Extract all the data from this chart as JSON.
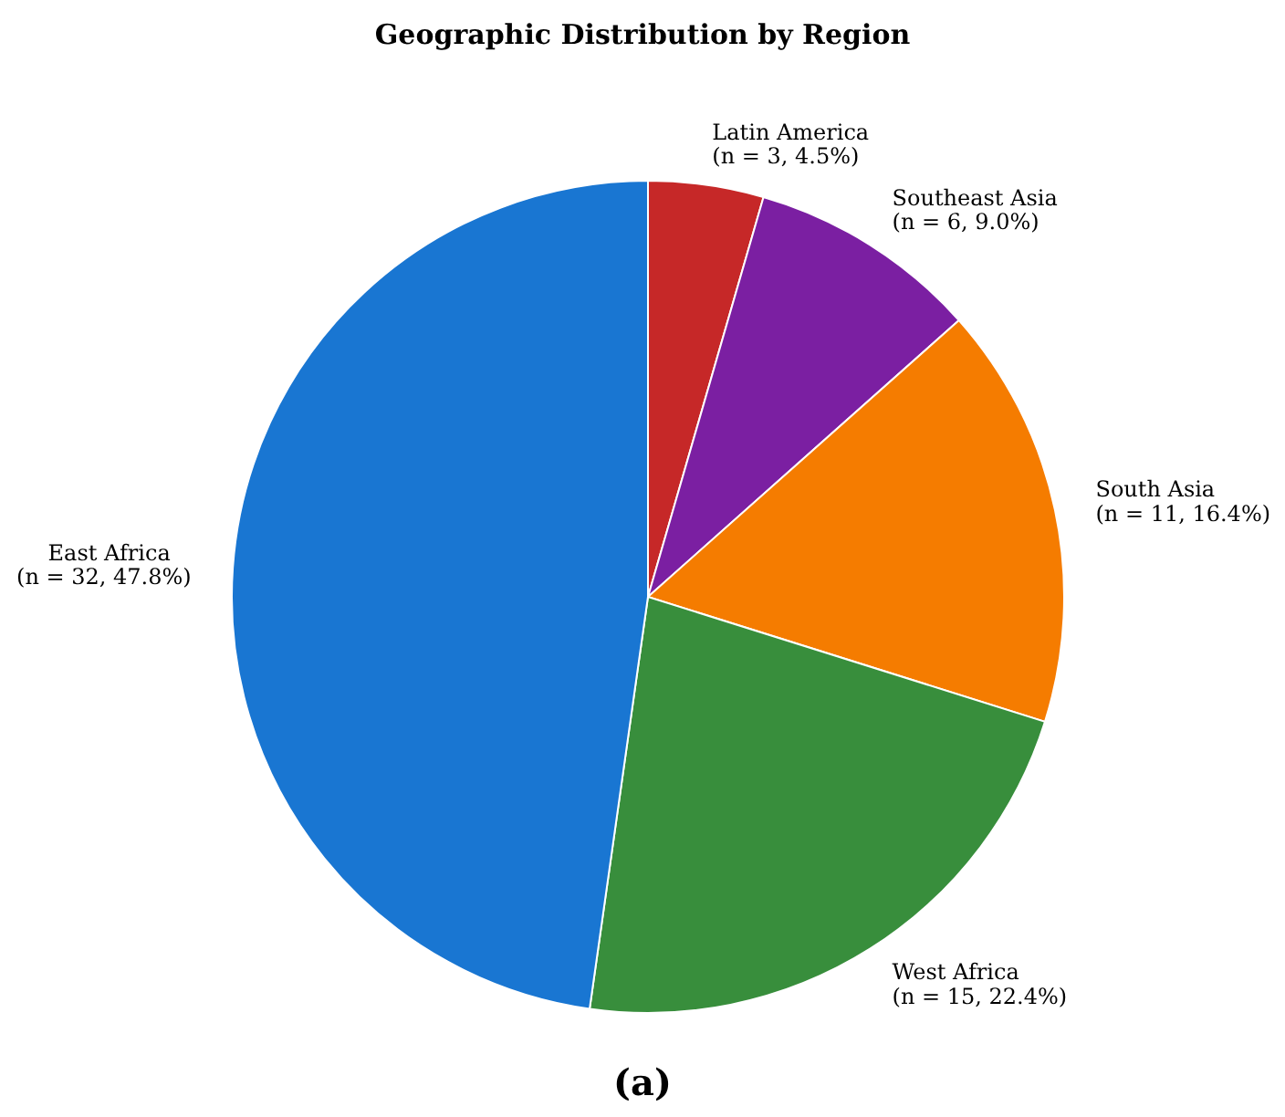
{
  "chart_data": {
    "type": "pie",
    "title": "Geographic Distribution by Region",
    "categories": [
      "Latin America",
      "Southeast Asia",
      "South Asia",
      "West Africa",
      "East Africa"
    ],
    "values": [
      3,
      6,
      11,
      15,
      32
    ],
    "value_labels": [
      "(n = 3, 4.5%)",
      "(n = 6, 9.0%)",
      "(n = 11, 16.4%)",
      "(n = 15, 22.4%)",
      "(n = 32, 47.8%)"
    ],
    "colors": [
      "#c62828",
      "#7b1fa2",
      "#f57c00",
      "#388e3c",
      "#1976d2"
    ],
    "annotations": [
      "(a)"
    ]
  }
}
